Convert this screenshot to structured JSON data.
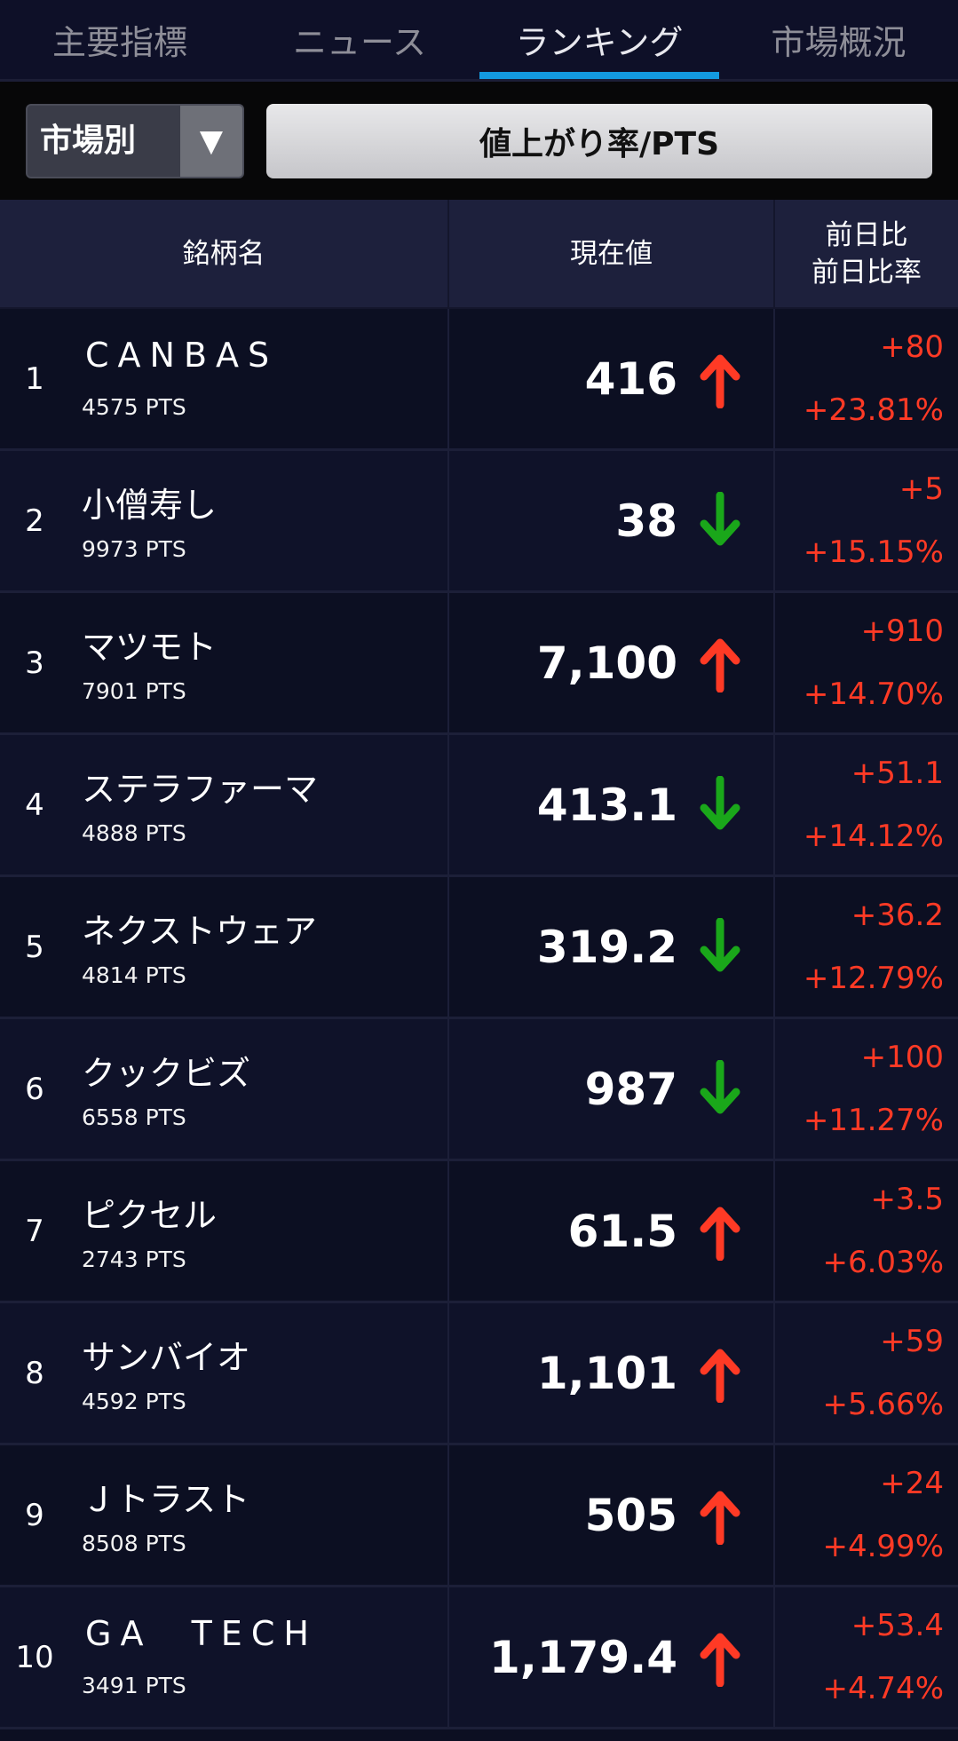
{
  "tabs": [
    {
      "label": "主要指標"
    },
    {
      "label": "ニュース"
    },
    {
      "label": "ランキング",
      "active": true
    },
    {
      "label": "市場概況"
    }
  ],
  "controls": {
    "market_select": "市場別",
    "ranking_type": "値上がり率/PTS"
  },
  "table": {
    "headers": {
      "name": "銘柄名",
      "price": "現在値",
      "change1": "前日比",
      "change2": "前日比率"
    },
    "colors": {
      "up": "#ff3a25",
      "down": "#1aa71a"
    },
    "rows": [
      {
        "rank": "1",
        "name": "CANBAS",
        "latin": true,
        "code": "4575 PTS",
        "price": "416",
        "trend": "up",
        "change": "+80",
        "pct": "+23.81%"
      },
      {
        "rank": "2",
        "name": "小僧寿し",
        "code": "9973 PTS",
        "price": "38",
        "trend": "down",
        "change": "+5",
        "pct": "+15.15%"
      },
      {
        "rank": "3",
        "name": "マツモト",
        "code": "7901 PTS",
        "price": "7,100",
        "trend": "up",
        "change": "+910",
        "pct": "+14.70%"
      },
      {
        "rank": "4",
        "name": "ステラファーマ",
        "code": "4888 PTS",
        "price": "413.1",
        "trend": "down",
        "change": "+51.1",
        "pct": "+14.12%"
      },
      {
        "rank": "5",
        "name": "ネクストウェア",
        "code": "4814 PTS",
        "price": "319.2",
        "trend": "down",
        "change": "+36.2",
        "pct": "+12.79%"
      },
      {
        "rank": "6",
        "name": "クックビズ",
        "code": "6558 PTS",
        "price": "987",
        "trend": "down",
        "change": "+100",
        "pct": "+11.27%"
      },
      {
        "rank": "7",
        "name": "ピクセル",
        "code": "2743 PTS",
        "price": "61.5",
        "trend": "up",
        "change": "+3.5",
        "pct": "+6.03%"
      },
      {
        "rank": "8",
        "name": "サンバイオ",
        "code": "4592 PTS",
        "price": "1,101",
        "trend": "up",
        "change": "+59",
        "pct": "+5.66%"
      },
      {
        "rank": "9",
        "name": "Ｊトラスト",
        "code": "8508 PTS",
        "price": "505",
        "trend": "up",
        "change": "+24",
        "pct": "+4.99%"
      },
      {
        "rank": "10",
        "name": "GA  TECH",
        "latin": true,
        "code": "3491 PTS",
        "price": "1,179.4",
        "trend": "up",
        "change": "+53.4",
        "pct": "+4.74%"
      }
    ]
  }
}
